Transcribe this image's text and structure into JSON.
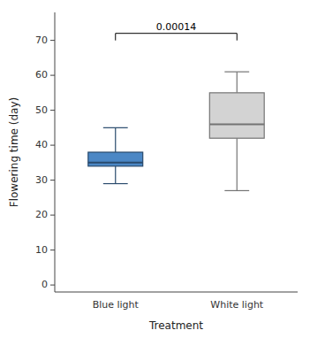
{
  "chart_data": {
    "type": "box",
    "categories": [
      "Blue light",
      "White light"
    ],
    "values": [
      {
        "whislo": 29,
        "q1": 34,
        "med": 35,
        "q3": 38,
        "whishi": 45
      },
      {
        "whislo": 27,
        "q1": 42,
        "med": 46,
        "q3": 55,
        "whishi": 61
      }
    ],
    "colors": [
      "#4B87C5",
      "#D3D3D3"
    ],
    "xlabel": "Treatment",
    "ylabel": "Flowering time (day)",
    "ylim": [
      -2,
      78
    ],
    "yticks": [
      0,
      10,
      20,
      30,
      40,
      50,
      60,
      70
    ],
    "annotations": [
      {
        "text": "0.00014",
        "y": 72
      }
    ],
    "grid": false
  }
}
